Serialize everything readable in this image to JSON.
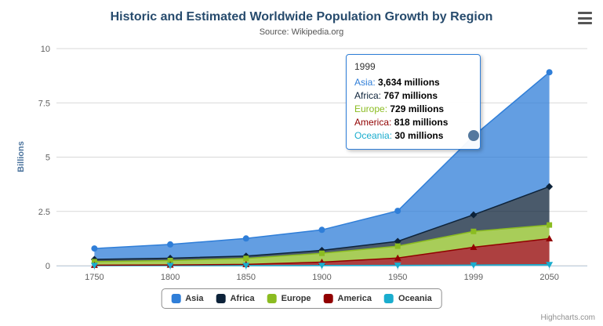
{
  "chart_data": {
    "type": "area",
    "stacked": true,
    "title": "Historic and Estimated Worldwide Population Growth by Region",
    "subtitle": "Source: Wikipedia.org",
    "xlabel": "",
    "ylabel": "Billions",
    "ylim": [
      0,
      10
    ],
    "yticks": [
      0,
      2.5,
      5,
      7.5,
      10
    ],
    "grid": true,
    "legend_position": "bottom",
    "values_unit": "millions",
    "categories": [
      "1750",
      "1800",
      "1850",
      "1900",
      "1950",
      "1999",
      "2050"
    ],
    "series": [
      {
        "name": "Asia",
        "color": "#2f7ed8",
        "marker": "circle",
        "values": [
          502,
          635,
          809,
          947,
          1402,
          3634,
          5268
        ]
      },
      {
        "name": "Africa",
        "color": "#0d233a",
        "marker": "diamond",
        "values": [
          106,
          107,
          111,
          133,
          221,
          767,
          1766
        ]
      },
      {
        "name": "Europe",
        "color": "#8bbc21",
        "marker": "square",
        "values": [
          163,
          203,
          276,
          408,
          547,
          729,
          628
        ]
      },
      {
        "name": "America",
        "color": "#910000",
        "marker": "triangle",
        "values": [
          18,
          31,
          54,
          156,
          339,
          818,
          1201
        ]
      },
      {
        "name": "Oceania",
        "color": "#1aadce",
        "marker": "triangle-down",
        "values": [
          2,
          2,
          2,
          6,
          13,
          30,
          46
        ]
      }
    ]
  },
  "tooltip": {
    "header": "1999",
    "category_index": 5,
    "border_color": "#2f7ed8",
    "hover_marker_color": "#54789e",
    "rows": [
      {
        "name": "Asia",
        "value": "3,634 millions"
      },
      {
        "name": "Africa",
        "value": "767 millions"
      },
      {
        "name": "Europe",
        "value": "729 millions"
      },
      {
        "name": "America",
        "value": "818 millions"
      },
      {
        "name": "Oceania",
        "value": "30 millions"
      }
    ]
  },
  "credits": "Highcharts.com",
  "icons": {
    "menu": "hamburger-menu-icon"
  }
}
